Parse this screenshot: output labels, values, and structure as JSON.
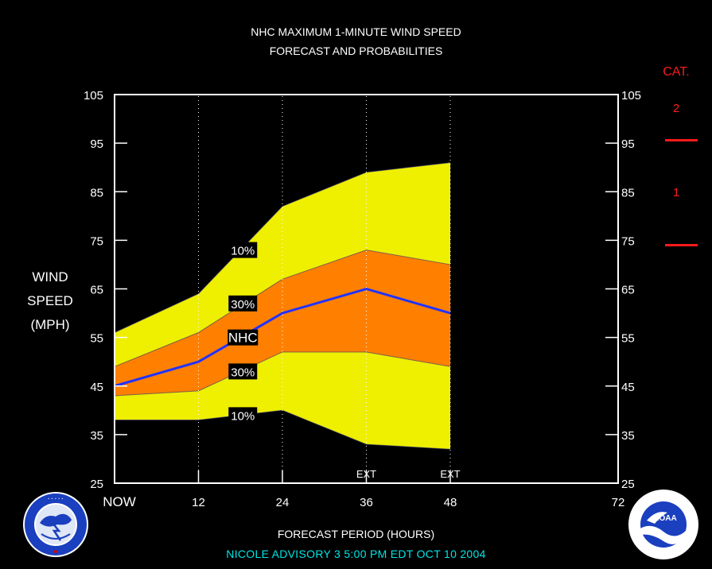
{
  "title_line1": "NHC MAXIMUM 1-MINUTE WIND SPEED",
  "title_line2": "FORECAST AND PROBABILITIES",
  "ylabel": [
    "WIND",
    "SPEED",
    "(MPH)"
  ],
  "xlabel": "FORECAST PERIOD (HOURS)",
  "footer": "NICOLE   ADVISORY  3  5:00  PM  EDT  OCT  10  2004",
  "category_legend": {
    "title": "CAT.",
    "categories": [
      "2",
      "1"
    ],
    "color": "#ff1a1a"
  },
  "logos": {
    "left": "NWS",
    "right": "NOAA"
  },
  "chart_data": {
    "type": "area",
    "title": "NHC MAXIMUM 1-MINUTE WIND SPEED FORECAST AND PROBABILITIES",
    "xlabel": "FORECAST PERIOD (HOURS)",
    "ylabel": "WIND SPEED (MPH)",
    "xlim": [
      0,
      72
    ],
    "ylim": [
      25,
      105
    ],
    "x_ticks": [
      {
        "x": 0,
        "label": "NOW"
      },
      {
        "x": 12,
        "label": "12"
      },
      {
        "x": 24,
        "label": "24"
      },
      {
        "x": 36,
        "label": "36"
      },
      {
        "x": 48,
        "label": "48"
      },
      {
        "x": 72,
        "label": "72"
      }
    ],
    "y_ticks": [
      25,
      35,
      45,
      55,
      65,
      75,
      85,
      95,
      105
    ],
    "ext_marks": [
      {
        "x": 36,
        "label": "EXT"
      },
      {
        "x": 48,
        "label": "EXT"
      }
    ],
    "vertical_dotted_lines": [
      12,
      24,
      36,
      48
    ],
    "colors": {
      "outer_band": "#efef00",
      "inner_band": "#ff8000",
      "nhc_line": "#2233ff",
      "frame": "#ffffff",
      "label_box": "#000000"
    },
    "series": [
      {
        "name": "10%",
        "x": [
          0,
          12,
          24,
          36,
          48
        ],
        "values": [
          56,
          64,
          82,
          89,
          91
        ]
      },
      {
        "name": "30%",
        "x": [
          0,
          12,
          24,
          36,
          48
        ],
        "values": [
          49,
          56,
          67,
          73,
          70
        ]
      },
      {
        "name": "NHC",
        "x": [
          0,
          12,
          24,
          36,
          48
        ],
        "values": [
          45,
          50,
          60,
          65,
          60
        ]
      },
      {
        "name": "30%",
        "x": [
          0,
          12,
          24,
          36,
          48
        ],
        "values": [
          43,
          44,
          52,
          52,
          49
        ]
      },
      {
        "name": "10%",
        "x": [
          0,
          12,
          24,
          36,
          48
        ],
        "values": [
          38,
          38,
          40,
          33,
          32
        ]
      }
    ],
    "band_labels": [
      {
        "text": "10%",
        "x": 18,
        "y": 73
      },
      {
        "text": "30%",
        "x": 18,
        "y": 62
      },
      {
        "text": "NHC",
        "x": 18,
        "y": 55
      },
      {
        "text": "30%",
        "x": 18,
        "y": 48
      },
      {
        "text": "10%",
        "x": 18,
        "y": 39
      }
    ],
    "category_thresholds": [
      {
        "category": "1",
        "min_mph": 74
      },
      {
        "category": "2",
        "min_mph": 96
      }
    ]
  }
}
